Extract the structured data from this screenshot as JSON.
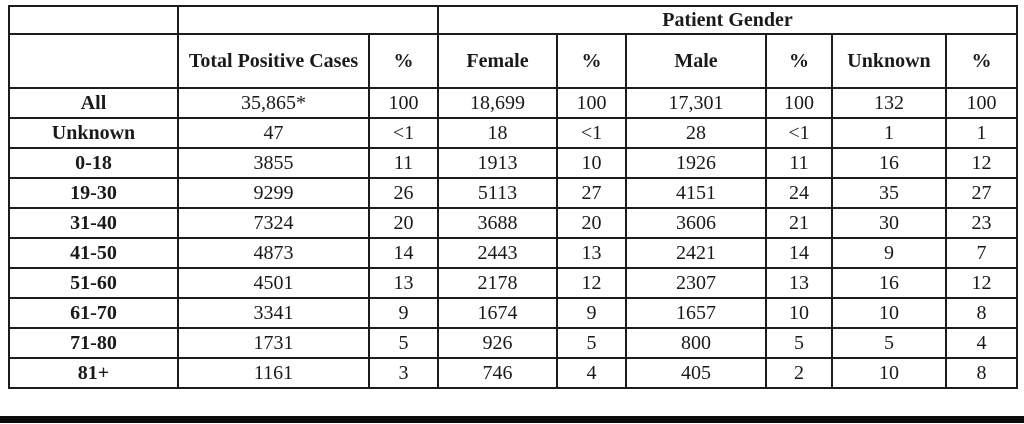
{
  "table": {
    "group_header": "Patient Gender",
    "col_headers": [
      "Total Positive Cases",
      "%",
      "Female",
      "%",
      "Male",
      "%",
      "Unknown",
      "%"
    ],
    "rows": [
      {
        "label": "All",
        "cells": [
          "35,865*",
          "100",
          "18,699",
          "100",
          "17,301",
          "100",
          "132",
          "100"
        ]
      },
      {
        "label": "Unknown",
        "cells": [
          "47",
          "<1",
          "18",
          "<1",
          "28",
          "<1",
          "1",
          "1"
        ]
      },
      {
        "label": "0-18",
        "cells": [
          "3855",
          "11",
          "1913",
          "10",
          "1926",
          "11",
          "16",
          "12"
        ]
      },
      {
        "label": "19-30",
        "cells": [
          "9299",
          "26",
          "5113",
          "27",
          "4151",
          "24",
          "35",
          "27"
        ]
      },
      {
        "label": "31-40",
        "cells": [
          "7324",
          "20",
          "3688",
          "20",
          "3606",
          "21",
          "30",
          "23"
        ]
      },
      {
        "label": "41-50",
        "cells": [
          "4873",
          "14",
          "2443",
          "13",
          "2421",
          "14",
          "9",
          "7"
        ]
      },
      {
        "label": "51-60",
        "cells": [
          "4501",
          "13",
          "2178",
          "12",
          "2307",
          "13",
          "16",
          "12"
        ]
      },
      {
        "label": "61-70",
        "cells": [
          "3341",
          "9",
          "1674",
          "9",
          "1657",
          "10",
          "10",
          "8"
        ]
      },
      {
        "label": "71-80",
        "cells": [
          "1731",
          "5",
          "926",
          "5",
          "800",
          "5",
          "5",
          "4"
        ]
      },
      {
        "label": "81+",
        "cells": [
          "1161",
          "3",
          "746",
          "4",
          "405",
          "2",
          "10",
          "8"
        ]
      }
    ],
    "colors": {
      "border": "#1c1c1c",
      "text": "#1a1a1a",
      "background": "#ffffff",
      "bottom_rule": "#0a0a0a"
    }
  }
}
